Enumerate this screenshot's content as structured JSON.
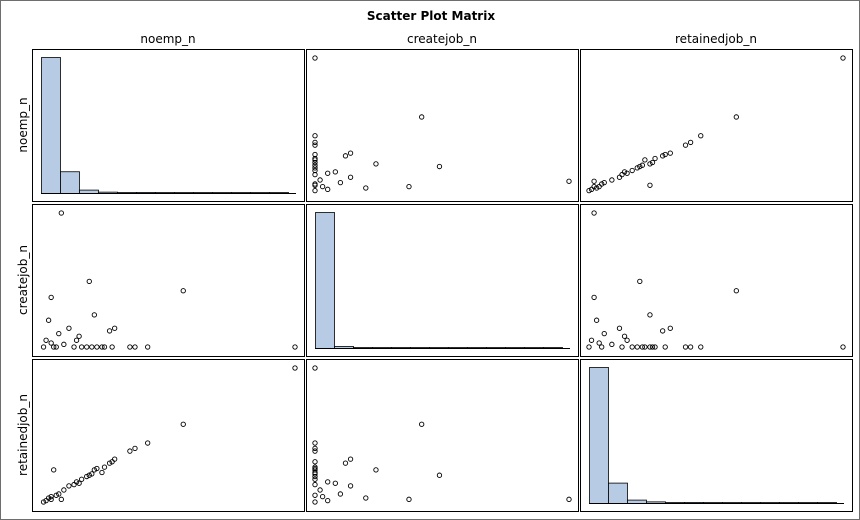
{
  "chart_data": {
    "type": "scatter-matrix",
    "title": "Scatter Plot Matrix",
    "variables": [
      "noemp_n",
      "createjob_n",
      "retainedjob_n"
    ],
    "diagonal": "histogram",
    "histograms": {
      "noemp_n": [
        1.0,
        0.16,
        0.025,
        0.01,
        0.004,
        0.008,
        0.003,
        0.002,
        0.002,
        0.001,
        0.001,
        0.001,
        0.001,
        0.001
      ],
      "createjob_n": [
        1.0,
        0.015,
        0.006,
        0.003,
        0.002,
        0.001,
        0.001,
        0.001,
        0.001,
        0.001,
        0.001,
        0.001,
        0.001,
        0.001,
        0.001
      ],
      "retainedjob_n": [
        1.0,
        0.15,
        0.025,
        0.012,
        0.004,
        0.008,
        0.003,
        0.002,
        0.002,
        0.001,
        0.001,
        0.001,
        0.001,
        0.001
      ]
    },
    "scatter_data": [
      {
        "noemp_n": 1.0,
        "createjob_n": 0.0,
        "retainedjob_n": 1.0
      },
      {
        "noemp_n": 0.56,
        "createjob_n": 0.42,
        "retainedjob_n": 0.58
      },
      {
        "noemp_n": 0.42,
        "createjob_n": 0.0,
        "retainedjob_n": 0.44
      },
      {
        "noemp_n": 0.37,
        "createjob_n": 0.0,
        "retainedjob_n": 0.4
      },
      {
        "noemp_n": 0.35,
        "createjob_n": 0.0,
        "retainedjob_n": 0.38
      },
      {
        "noemp_n": 0.28,
        "createjob_n": 0.0,
        "retainedjob_n": 0.3
      },
      {
        "noemp_n": 0.27,
        "createjob_n": 0.12,
        "retainedjob_n": 0.29
      },
      {
        "noemp_n": 0.25,
        "createjob_n": 0.0,
        "retainedjob_n": 0.26
      },
      {
        "noemp_n": 0.24,
        "createjob_n": 0.0,
        "retainedjob_n": 0.22
      },
      {
        "noemp_n": 0.22,
        "createjob_n": 0.0,
        "retainedjob_n": 0.25
      },
      {
        "noemp_n": 0.2,
        "createjob_n": 0.0,
        "retainedjob_n": 0.21
      },
      {
        "noemp_n": 0.18,
        "createjob_n": 0.0,
        "retainedjob_n": 0.19
      },
      {
        "noemp_n": 0.16,
        "createjob_n": 0.0,
        "retainedjob_n": 0.17
      },
      {
        "noemp_n": 0.15,
        "createjob_n": 0.08,
        "retainedjob_n": 0.14
      },
      {
        "noemp_n": 0.13,
        "createjob_n": 0.0,
        "retainedjob_n": 0.13
      },
      {
        "noemp_n": 0.08,
        "createjob_n": 1.0,
        "retainedjob_n": 0.02
      },
      {
        "noemp_n": 0.04,
        "createjob_n": 0.37,
        "retainedjob_n": 0.02
      },
      {
        "noemp_n": 0.19,
        "createjob_n": 0.49,
        "retainedjob_n": 0.2
      },
      {
        "noemp_n": 0.05,
        "createjob_n": 0.0,
        "retainedjob_n": 0.24
      },
      {
        "noemp_n": 0.21,
        "createjob_n": 0.24,
        "retainedjob_n": 0.24
      },
      {
        "noemp_n": 0.29,
        "createjob_n": 0.14,
        "retainedjob_n": 0.32
      },
      {
        "noemp_n": 0.11,
        "createjob_n": 0.14,
        "retainedjob_n": 0.12
      },
      {
        "noemp_n": 0.07,
        "createjob_n": 0.1,
        "retainedjob_n": 0.06
      },
      {
        "noemp_n": 0.14,
        "createjob_n": 0.05,
        "retainedjob_n": 0.15
      },
      {
        "noemp_n": 0.03,
        "createjob_n": 0.2,
        "retainedjob_n": 0.03
      },
      {
        "noemp_n": 0.02,
        "createjob_n": 0.05,
        "retainedjob_n": 0.01
      },
      {
        "noemp_n": 0.01,
        "createjob_n": 0.0,
        "retainedjob_n": 0.0
      },
      {
        "noemp_n": 0.04,
        "createjob_n": 0.03,
        "retainedjob_n": 0.04
      },
      {
        "noemp_n": 0.06,
        "createjob_n": 0.0,
        "retainedjob_n": 0.05
      },
      {
        "noemp_n": 0.09,
        "createjob_n": 0.02,
        "retainedjob_n": 0.09
      }
    ]
  }
}
